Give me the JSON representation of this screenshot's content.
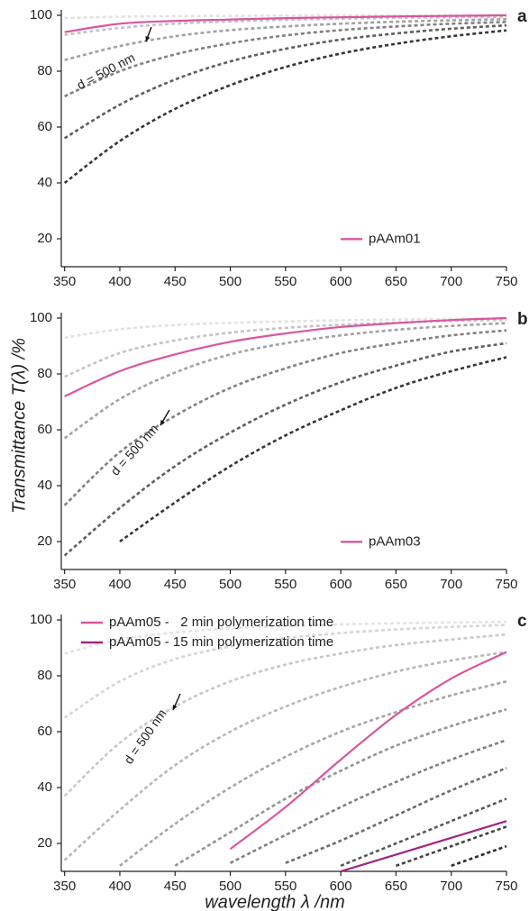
{
  "chart_data": [
    {
      "type": "line",
      "label": "a",
      "annotation": "d = 500 nm",
      "legend": "lower right",
      "x": [
        350,
        400,
        450,
        500,
        550,
        600,
        650,
        700,
        750
      ],
      "xlim": [
        347,
        750
      ],
      "ylim": [
        10,
        100
      ],
      "xticks": [
        350,
        400,
        450,
        500,
        550,
        600,
        650,
        700,
        750
      ],
      "yticks": [
        20,
        40,
        60,
        80,
        100
      ],
      "series": [
        {
          "color": "#e2e2e2",
          "style": "dashed",
          "values": [
            99,
            99.5,
            99.7,
            99.8,
            99.9,
            100,
            100,
            100,
            100
          ]
        },
        {
          "color": "#c4c4c4",
          "style": "dashed",
          "values": [
            93,
            95.5,
            97,
            97.8,
            98.4,
            98.8,
            99.1,
            99.3,
            99.5
          ]
        },
        {
          "color": "#a2a2a2",
          "style": "dashed",
          "values": [
            84,
            89,
            92.5,
            94.7,
            96,
            97,
            97.7,
            98.2,
            98.6
          ]
        },
        {
          "color": "#818181",
          "style": "dashed",
          "values": [
            71,
            80,
            86,
            90,
            92.8,
            94.7,
            96,
            97,
            97.6
          ]
        },
        {
          "color": "#5e5e5e",
          "style": "dashed",
          "values": [
            56,
            68,
            77,
            83.5,
            88,
            91.3,
            93.5,
            95.2,
            96.4
          ]
        },
        {
          "color": "#363636",
          "style": "dashed",
          "values": [
            40,
            55,
            66.5,
            75,
            81.5,
            86.3,
            89.8,
            92.5,
            94.6
          ]
        },
        {
          "name": "pAAm01",
          "color": "#d9559f",
          "style": "solid",
          "values": [
            94,
            97,
            98,
            98.5,
            99,
            99.3,
            99.6,
            99.8,
            100
          ]
        }
      ]
    },
    {
      "type": "line",
      "label": "b",
      "annotation": "d = 500 nm",
      "legend": "lower right",
      "ylabel": "Transmittance T(λ) /%",
      "x": [
        350,
        400,
        450,
        500,
        550,
        600,
        650,
        700,
        750
      ],
      "xlim": [
        347,
        750
      ],
      "ylim": [
        10,
        100
      ],
      "xticks": [
        350,
        400,
        450,
        500,
        550,
        600,
        650,
        700,
        750
      ],
      "yticks": [
        20,
        40,
        60,
        80,
        100
      ],
      "series": [
        {
          "color": "#e2e2e2",
          "style": "dashed",
          "values": [
            93,
            96,
            97.5,
            98.3,
            98.8,
            99.2,
            99.5,
            99.7,
            99.8
          ]
        },
        {
          "color": "#c4c4c4",
          "style": "dashed",
          "values": [
            79,
            87.5,
            92,
            94.8,
            96.5,
            97.6,
            98.4,
            99,
            99.4
          ]
        },
        {
          "color": "#a2a2a2",
          "style": "dashed",
          "values": [
            57,
            71,
            80.5,
            87,
            91,
            93.8,
            95.8,
            97.2,
            98.2
          ]
        },
        {
          "color": "#818181",
          "style": "dashed",
          "values": [
            33,
            52,
            65,
            75,
            82,
            87.5,
            91,
            93.8,
            95.6
          ]
        },
        {
          "color": "#5e5e5e",
          "style": "dashed",
          "values": [
            15,
            32,
            47,
            59,
            69,
            77,
            83,
            88,
            91
          ]
        },
        {
          "color": "#363636",
          "style": "dashed",
          "values": [
            null,
            20,
            34,
            47,
            58,
            67,
            75,
            81,
            86
          ]
        },
        {
          "name": "pAAm03",
          "color": "#d9559f",
          "style": "solid",
          "values": [
            72,
            81,
            87,
            91.5,
            94.5,
            96.8,
            98.2,
            99.3,
            100
          ]
        }
      ]
    },
    {
      "type": "line",
      "label": "c",
      "annotation": "d = 500 nm",
      "legend": "upper left",
      "xlabel": "wavelength λ /nm",
      "x": [
        350,
        400,
        450,
        500,
        550,
        600,
        650,
        700,
        750
      ],
      "xlim": [
        347,
        750
      ],
      "ylim": [
        10,
        100
      ],
      "xticks": [
        350,
        400,
        450,
        500,
        550,
        600,
        650,
        700,
        750
      ],
      "yticks": [
        20,
        40,
        60,
        80,
        100
      ],
      "series": [
        {
          "color": "#e4e4e4",
          "style": "dashed",
          "values": [
            88,
            93,
            95.5,
            97,
            97.8,
            98.4,
            98.8,
            99.1,
            99.3
          ]
        },
        {
          "color": "#d6d6d6",
          "style": "dashed",
          "values": [
            65,
            78,
            86,
            90.5,
            93.5,
            95.3,
            96.6,
            97.5,
            98.2
          ]
        },
        {
          "color": "#c8c8c8",
          "style": "dashed",
          "values": [
            37,
            56,
            69,
            78,
            84,
            88,
            91,
            93,
            94.8
          ]
        },
        {
          "color": "#b8b8b8",
          "style": "dashed",
          "values": [
            14,
            32,
            48,
            60,
            69,
            76,
            81.5,
            85.5,
            88.5
          ]
        },
        {
          "color": "#a6a6a6",
          "style": "dashed",
          "values": [
            null,
            12,
            27,
            40,
            51,
            60,
            67,
            73,
            78
          ]
        },
        {
          "color": "#949494",
          "style": "dashed",
          "values": [
            null,
            null,
            12,
            24,
            36,
            46,
            55,
            62,
            68
          ]
        },
        {
          "color": "#808080",
          "style": "dashed",
          "values": [
            null,
            null,
            null,
            13,
            23,
            33,
            42,
            50,
            57
          ]
        },
        {
          "color": "#6c6c6c",
          "style": "dashed",
          "values": [
            null,
            null,
            null,
            null,
            13,
            21,
            30,
            39,
            47
          ]
        },
        {
          "color": "#585858",
          "style": "dashed",
          "values": [
            null,
            null,
            null,
            null,
            null,
            12,
            20,
            28,
            36
          ]
        },
        {
          "color": "#444444",
          "style": "dashed",
          "values": [
            null,
            null,
            null,
            null,
            null,
            null,
            12,
            19,
            26
          ]
        },
        {
          "color": "#2e2e2e",
          "style": "dashed",
          "values": [
            null,
            null,
            null,
            null,
            null,
            null,
            null,
            12,
            19
          ]
        },
        {
          "name": "pAAm05 -   2 min polymerization time",
          "color": "#d9559f",
          "style": "solid",
          "values": [
            null,
            null,
            null,
            18,
            33,
            50,
            66,
            79,
            88.5
          ]
        },
        {
          "name": "pAAm05 - 15 min polymerization time",
          "color": "#a0257f",
          "style": "solid",
          "values": [
            null,
            null,
            null,
            null,
            null,
            10,
            16,
            22,
            28
          ]
        }
      ]
    }
  ]
}
